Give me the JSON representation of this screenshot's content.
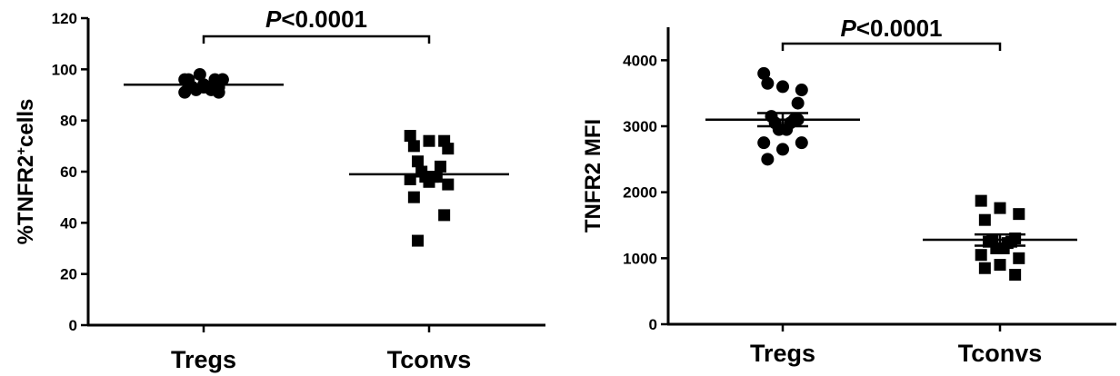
{
  "chart_data": [
    {
      "type": "scatter",
      "ylabel": "%TNFR2⁺cells",
      "ylim": [
        0,
        120
      ],
      "yticks": [
        0,
        20,
        40,
        60,
        80,
        100,
        120
      ],
      "categories": [
        "Tregs",
        "Tconvs"
      ],
      "significance": {
        "between": [
          "Tregs",
          "Tconvs"
        ],
        "label_italic": "P",
        "label": "<0.0001"
      },
      "error_bars": false,
      "series": [
        {
          "category": "Tregs",
          "marker": "circle",
          "mean": 94,
          "values": [
            96,
            94,
            96,
            93,
            91,
            93,
            96,
            92,
            92,
            98,
            93,
            91,
            96,
            93,
            96,
            93
          ]
        },
        {
          "category": "Tconvs",
          "marker": "square",
          "mean": 59,
          "values": [
            74,
            72,
            69,
            70,
            72,
            64,
            62,
            60,
            58,
            58,
            58,
            57,
            55,
            56,
            50,
            43,
            33
          ]
        }
      ]
    },
    {
      "type": "scatter",
      "ylabel": "TNFR2 MFI",
      "ylim": [
        0,
        4500
      ],
      "yticks": [
        0,
        1000,
        2000,
        3000,
        4000
      ],
      "categories": [
        "Tregs",
        "Tconvs"
      ],
      "significance": {
        "between": [
          "Tregs",
          "Tconvs"
        ],
        "label_italic": "P",
        "label": "<0.0001"
      },
      "error_bars": true,
      "series": [
        {
          "category": "Tregs",
          "marker": "circle",
          "mean": 3100,
          "sem_low": 3000,
          "sem_high": 3200,
          "values": [
            3800,
            3600,
            3550,
            3650,
            3350,
            3150,
            3100,
            3050,
            3050,
            2950,
            2950,
            2750,
            2750,
            2650,
            2500,
            3100
          ]
        },
        {
          "category": "Tconvs",
          "marker": "square",
          "mean": 1280,
          "sem_low": 1190,
          "sem_high": 1360,
          "values": [
            1870,
            1760,
            1670,
            1580,
            1300,
            1250,
            1250,
            1280,
            1230,
            1150,
            1150,
            1050,
            1000,
            900,
            850,
            750
          ]
        }
      ]
    }
  ]
}
